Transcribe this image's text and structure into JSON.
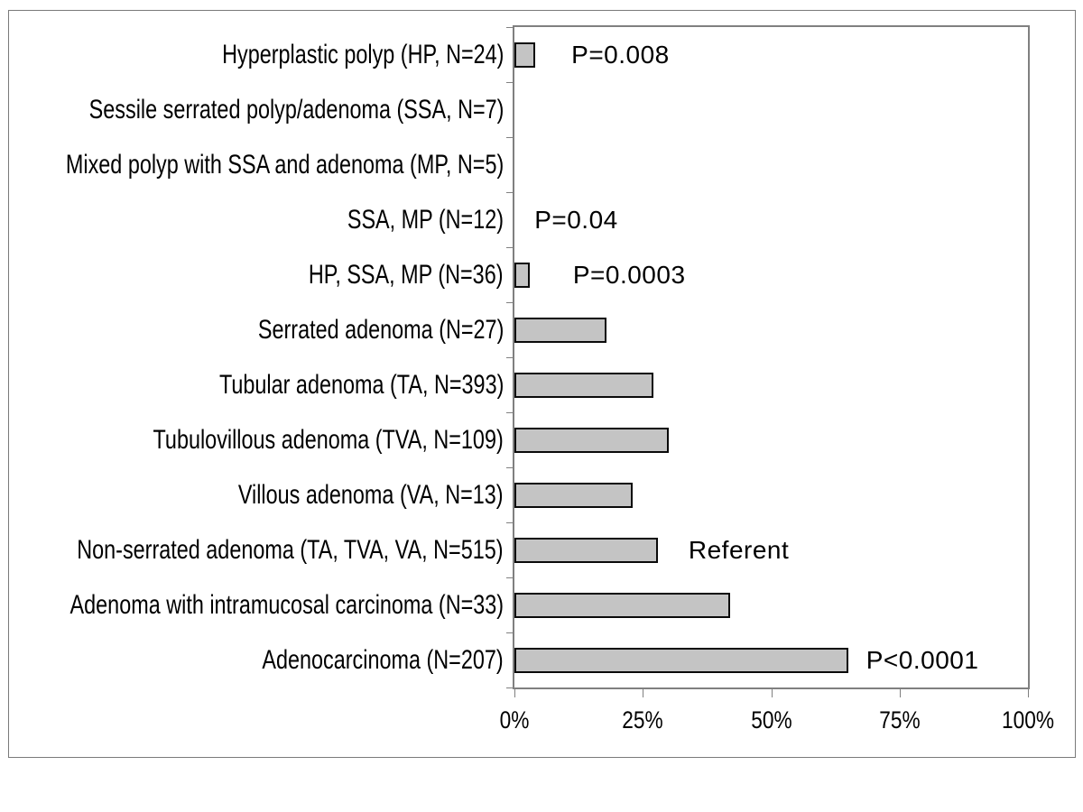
{
  "chart_data": {
    "type": "bar",
    "orientation": "horizontal",
    "title": "",
    "xlabel": "",
    "ylabel": "",
    "xlim": [
      0,
      100
    ],
    "grid": false,
    "legend": false,
    "categories": [
      "Hyperplastic polyp (HP, N=24)",
      "Sessile serrated polyp/adenoma (SSA, N=7)",
      "Mixed polyp with SSA and adenoma (MP, N=5)",
      "SSA, MP (N=12)",
      "HP, SSA, MP (N=36)",
      "Serrated adenoma (N=27)",
      "Tubular adenoma (TA, N=393)",
      "Tubulovillous adenoma (TVA, N=109)",
      "Villous adenoma (VA, N=13)",
      "Non-serrated adenoma (TA, TVA, VA, N=515)",
      "Adenoma with intramucosal carcinoma (N=33)",
      "Adenocarcinoma (N=207)"
    ],
    "values": [
      4,
      0,
      0,
      0,
      3,
      18,
      27,
      30,
      23,
      28,
      42,
      65
    ],
    "annotations": [
      {
        "row": 0,
        "text": "P=0.008",
        "x_pct": 11.1
      },
      {
        "row": 3,
        "text": "P=0.04",
        "x_pct": 3.9
      },
      {
        "row": 4,
        "text": "P=0.0003",
        "x_pct": 11.4
      },
      {
        "row": 9,
        "text": "Referent",
        "x_pct": 33.9
      },
      {
        "row": 11,
        "text": "P<0.0001",
        "x_pct": 68.5
      }
    ],
    "x_ticks": [
      {
        "label": "0%",
        "value": 0
      },
      {
        "label": "25%",
        "value": 25
      },
      {
        "label": "50%",
        "value": 50
      },
      {
        "label": "75%",
        "value": 75
      },
      {
        "label": "100%",
        "value": 100
      }
    ],
    "colors": {
      "bar_fill": "#c4c4c4",
      "bar_border": "#0a0a0a",
      "axis": "#808080",
      "text": "#000000",
      "background": "#ffffff"
    }
  }
}
